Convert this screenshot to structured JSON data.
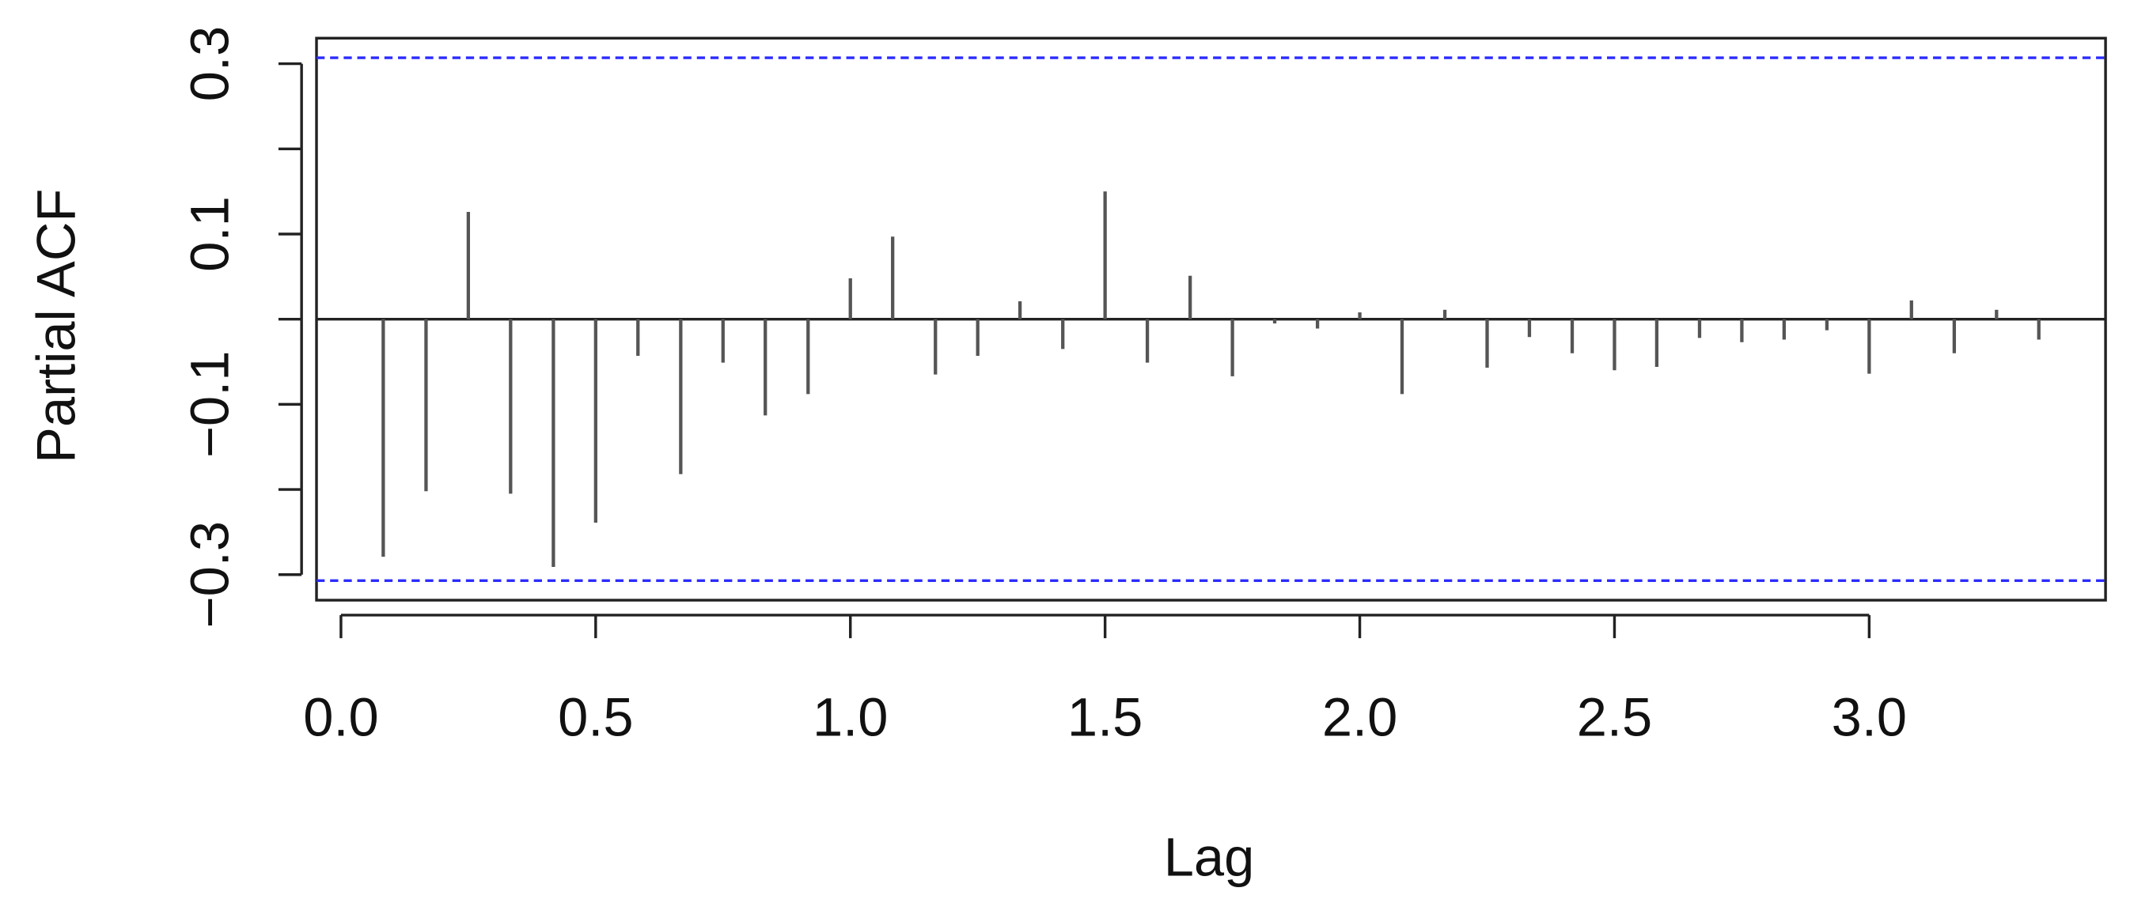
{
  "chart_data": {
    "type": "pacf",
    "x_label": "Lag",
    "y_label": "Partial ACF",
    "x": [
      0.083,
      0.167,
      0.25,
      0.333,
      0.417,
      0.5,
      0.583,
      0.667,
      0.75,
      0.833,
      0.917,
      1.0,
      1.083,
      1.167,
      1.25,
      1.333,
      1.417,
      1.5,
      1.583,
      1.667,
      1.75,
      1.833,
      1.917,
      2.0,
      2.083,
      2.167,
      2.25,
      2.333,
      2.417,
      2.5,
      2.583,
      2.667,
      2.75,
      2.833,
      2.917,
      3.0,
      3.083,
      3.167,
      3.25,
      3.333
    ],
    "values": [
      -0.279,
      -0.202,
      0.126,
      -0.205,
      -0.291,
      -0.239,
      -0.043,
      -0.182,
      -0.051,
      -0.113,
      -0.088,
      0.048,
      0.097,
      -0.065,
      -0.043,
      0.021,
      -0.035,
      0.15,
      -0.051,
      0.051,
      -0.067,
      -0.005,
      -0.011,
      0.008,
      -0.088,
      0.011,
      -0.057,
      -0.021,
      -0.04,
      -0.06,
      -0.056,
      -0.022,
      -0.027,
      -0.024,
      -0.013,
      -0.064,
      0.022,
      -0.04,
      0.011,
      -0.024
    ],
    "color": "#555555",
    "conf_limits": [
      -0.307,
      0.307
    ],
    "conf_color": "#2b2bff",
    "xlim": [
      -0.048,
      3.464
    ],
    "ylim": [
      -0.33,
      0.33
    ],
    "xticks": [
      {
        "value": 0,
        "label": "0.0"
      },
      0.5,
      {
        "value": 1,
        "label": "1.0"
      },
      1.5,
      {
        "value": 2,
        "label": "2.0"
      },
      2.5,
      {
        "value": 3,
        "label": "3.0"
      }
    ],
    "yticks": [
      {
        "value": -0.3,
        "label": "−0.3"
      },
      {
        "value": -0.1,
        "label": "−0.1"
      },
      0.1,
      0.3
    ],
    "yticks_minor": [
      -0.2,
      0,
      0.2
    ]
  }
}
